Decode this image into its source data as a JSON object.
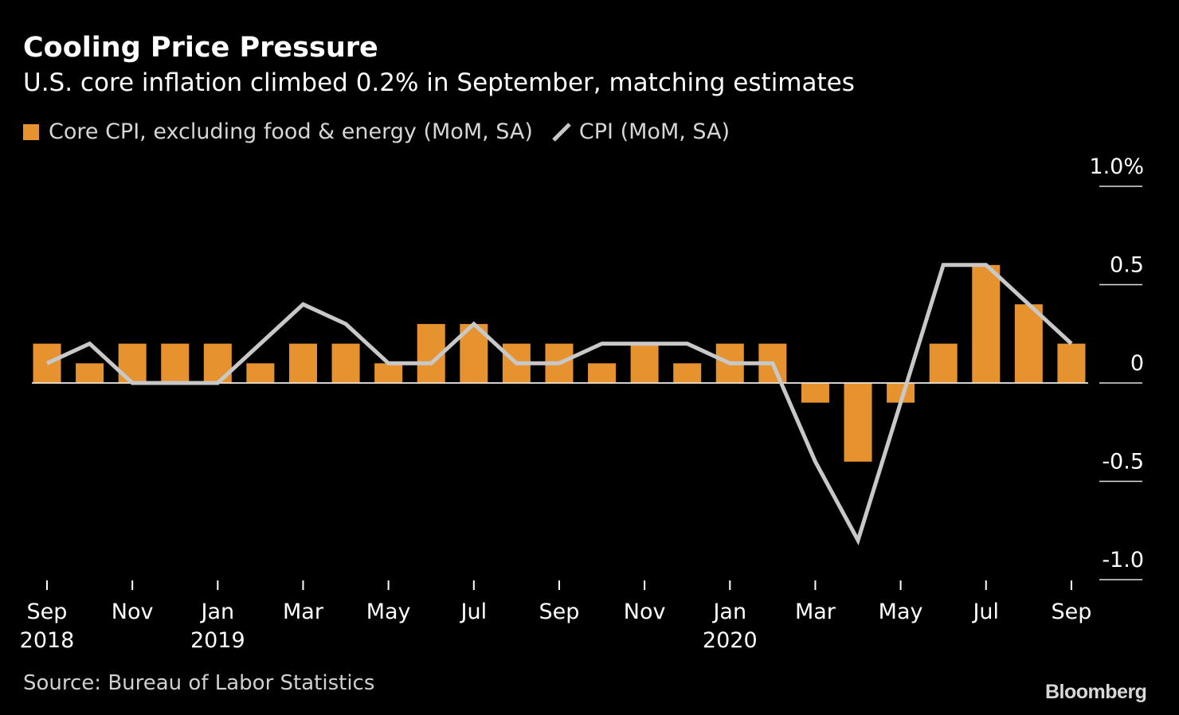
{
  "chart_data": {
    "type": "bar",
    "title": "Cooling Price Pressure",
    "subtitle": "U.S. core inflation climbed 0.2% in September, matching estimates",
    "source": "Source: Bureau of Labor Statistics",
    "brand": "Bloomberg",
    "categories": [
      "Sep 2018",
      "Oct 2018",
      "Nov 2018",
      "Dec 2018",
      "Jan 2019",
      "Feb 2019",
      "Mar 2019",
      "Apr 2019",
      "May 2019",
      "Jun 2019",
      "Jul 2019",
      "Aug 2019",
      "Sep 2019",
      "Oct 2019",
      "Nov 2019",
      "Dec 2019",
      "Jan 2020",
      "Feb 2020",
      "Mar 2020",
      "Apr 2020",
      "May 2020",
      "Jun 2020",
      "Jul 2020",
      "Aug 2020",
      "Sep 2020"
    ],
    "x_tick_labels": [
      {
        "index": 0,
        "month": "Sep",
        "year": "2018"
      },
      {
        "index": 2,
        "month": "Nov",
        "year": ""
      },
      {
        "index": 4,
        "month": "Jan",
        "year": "2019"
      },
      {
        "index": 6,
        "month": "Mar",
        "year": ""
      },
      {
        "index": 8,
        "month": "May",
        "year": ""
      },
      {
        "index": 10,
        "month": "Jul",
        "year": ""
      },
      {
        "index": 12,
        "month": "Sep",
        "year": ""
      },
      {
        "index": 14,
        "month": "Nov",
        "year": ""
      },
      {
        "index": 16,
        "month": "Jan",
        "year": "2020"
      },
      {
        "index": 18,
        "month": "Mar",
        "year": ""
      },
      {
        "index": 20,
        "month": "May",
        "year": ""
      },
      {
        "index": 22,
        "month": "Jul",
        "year": ""
      },
      {
        "index": 24,
        "month": "Sep",
        "year": ""
      }
    ],
    "series": [
      {
        "name": "Core CPI, excluding food & energy (MoM, SA)",
        "kind": "bar",
        "color": "#e6922e",
        "values": [
          0.2,
          0.1,
          0.2,
          0.2,
          0.2,
          0.1,
          0.2,
          0.2,
          0.1,
          0.3,
          0.3,
          0.2,
          0.2,
          0.1,
          0.2,
          0.1,
          0.2,
          0.2,
          -0.1,
          -0.4,
          -0.1,
          0.2,
          0.6,
          0.4,
          0.2
        ]
      },
      {
        "name": "CPI (MoM, SA)",
        "kind": "line",
        "color": "#c8c8c8",
        "values": [
          0.1,
          0.2,
          0.0,
          0.0,
          0.0,
          0.2,
          0.4,
          0.3,
          0.1,
          0.1,
          0.3,
          0.1,
          0.1,
          0.2,
          0.2,
          0.2,
          0.1,
          0.1,
          -0.4,
          -0.8,
          -0.1,
          0.6,
          0.6,
          0.4,
          0.2
        ]
      }
    ],
    "y_ticks": [
      {
        "value": 1.0,
        "label": "1.0%"
      },
      {
        "value": 0.5,
        "label": "0.5"
      },
      {
        "value": 0.0,
        "label": "0"
      },
      {
        "value": -0.5,
        "label": "-0.5"
      },
      {
        "value": -1.0,
        "label": "-1.0"
      }
    ],
    "ylim": [
      -1.0,
      1.0
    ],
    "grid": false,
    "legend_position": "top-left"
  }
}
